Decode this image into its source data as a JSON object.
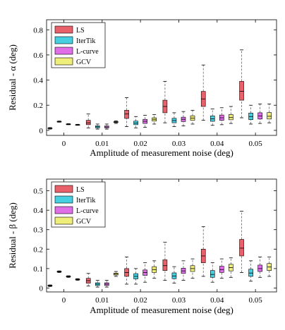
{
  "chart_data": [
    {
      "type": "box",
      "xlabel": "Amplitude of measurement noise (deg)",
      "ylabel": "Residual - α (deg)",
      "x_ticks": [
        0,
        0.01,
        0.02,
        0.03,
        0.04,
        0.05
      ],
      "x_tick_labels": [
        "0",
        "0.01",
        "0.02",
        "0.03",
        "0.04",
        "0.05"
      ],
      "xlim": [
        -0.0045,
        0.0555
      ],
      "ylim": [
        -0.04,
        0.88
      ],
      "y_ticks": [
        0,
        0.2,
        0.4,
        0.6,
        0.8
      ],
      "y_tick_labels": [
        "0",
        "0.2",
        "0.4",
        "0.6",
        "0.8"
      ],
      "legend_position": "top-left",
      "series": [
        {
          "name": "LS",
          "color": "#e8606a",
          "boxes": [
            {
              "x": 0,
              "min": 0.01,
              "q1": 0.015,
              "median": 0.017,
              "q3": 0.019,
              "max": 0.022
            },
            {
              "x": 0.01,
              "min": 0.02,
              "q1": 0.045,
              "median": 0.06,
              "q3": 0.08,
              "max": 0.13
            },
            {
              "x": 0.02,
              "min": 0.03,
              "q1": 0.095,
              "median": 0.13,
              "q3": 0.16,
              "max": 0.26
            },
            {
              "x": 0.03,
              "min": 0.06,
              "q1": 0.14,
              "median": 0.19,
              "q3": 0.24,
              "max": 0.39
            },
            {
              "x": 0.04,
              "min": 0.08,
              "q1": 0.19,
              "median": 0.25,
              "q3": 0.31,
              "max": 0.52
            },
            {
              "x": 0.05,
              "min": 0.1,
              "q1": 0.24,
              "median": 0.31,
              "q3": 0.39,
              "max": 0.64
            }
          ]
        },
        {
          "name": "IterTik",
          "color": "#46cfe0",
          "boxes": [
            {
              "x": 0,
              "min": 0.065,
              "q1": 0.068,
              "median": 0.07,
              "q3": 0.072,
              "max": 0.074
            },
            {
              "x": 0.01,
              "min": 0.01,
              "q1": 0.02,
              "median": 0.028,
              "q3": 0.036,
              "max": 0.05
            },
            {
              "x": 0.02,
              "min": 0.02,
              "q1": 0.045,
              "median": 0.058,
              "q3": 0.074,
              "max": 0.11
            },
            {
              "x": 0.03,
              "min": 0.03,
              "q1": 0.06,
              "median": 0.078,
              "q3": 0.096,
              "max": 0.14
            },
            {
              "x": 0.04,
              "min": 0.04,
              "q1": 0.072,
              "median": 0.092,
              "q3": 0.115,
              "max": 0.17
            },
            {
              "x": 0.05,
              "min": 0.05,
              "q1": 0.085,
              "median": 0.11,
              "q3": 0.138,
              "max": 0.2
            }
          ]
        },
        {
          "name": "L-curve",
          "color": "#e06ee8",
          "boxes": [
            {
              "x": 0,
              "min": 0.045,
              "q1": 0.047,
              "median": 0.049,
              "q3": 0.051,
              "max": 0.053
            },
            {
              "x": 0.01,
              "min": 0.01,
              "q1": 0.02,
              "median": 0.027,
              "q3": 0.035,
              "max": 0.05
            },
            {
              "x": 0.02,
              "min": 0.025,
              "q1": 0.055,
              "median": 0.072,
              "q3": 0.088,
              "max": 0.12
            },
            {
              "x": 0.03,
              "min": 0.035,
              "q1": 0.07,
              "median": 0.088,
              "q3": 0.105,
              "max": 0.15
            },
            {
              "x": 0.04,
              "min": 0.045,
              "q1": 0.08,
              "median": 0.1,
              "q3": 0.122,
              "max": 0.18
            },
            {
              "x": 0.05,
              "min": 0.055,
              "q1": 0.09,
              "median": 0.115,
              "q3": 0.14,
              "max": 0.21
            }
          ]
        },
        {
          "name": "GCV",
          "color": "#f0ee7a",
          "boxes": [
            {
              "x": 0,
              "min": 0.04,
              "q1": 0.042,
              "median": 0.044,
              "q3": 0.046,
              "max": 0.048
            },
            {
              "x": 0.01,
              "min": 0.055,
              "q1": 0.062,
              "median": 0.066,
              "q3": 0.07,
              "max": 0.076
            },
            {
              "x": 0.02,
              "min": 0.05,
              "q1": 0.074,
              "median": 0.088,
              "q3": 0.1,
              "max": 0.125
            },
            {
              "x": 0.03,
              "min": 0.05,
              "q1": 0.08,
              "median": 0.098,
              "q3": 0.116,
              "max": 0.16
            },
            {
              "x": 0.04,
              "min": 0.055,
              "q1": 0.084,
              "median": 0.102,
              "q3": 0.126,
              "max": 0.19
            },
            {
              "x": 0.05,
              "min": 0.06,
              "q1": 0.09,
              "median": 0.112,
              "q3": 0.142,
              "max": 0.21
            }
          ]
        }
      ]
    },
    {
      "type": "box",
      "xlabel": "Amplitude of measurement noise (deg)",
      "ylabel": "Residual - β (deg)",
      "x_ticks": [
        0,
        0.01,
        0.02,
        0.03,
        0.04,
        0.05
      ],
      "x_tick_labels": [
        "0",
        "0.01",
        "0.02",
        "0.03",
        "0.04",
        "0.05"
      ],
      "xlim": [
        -0.0045,
        0.0555
      ],
      "ylim": [
        -0.02,
        0.56
      ],
      "y_ticks": [
        0,
        0.1,
        0.2,
        0.3,
        0.4,
        0.5
      ],
      "y_tick_labels": [
        "0",
        "0.1",
        "0.2",
        "0.3",
        "0.4",
        "0.5"
      ],
      "legend_position": "top-left",
      "series": [
        {
          "name": "LS",
          "color": "#e8606a",
          "boxes": [
            {
              "x": 0,
              "min": 0.008,
              "q1": 0.01,
              "median": 0.012,
              "q3": 0.014,
              "max": 0.016
            },
            {
              "x": 0.01,
              "min": 0.01,
              "q1": 0.025,
              "median": 0.038,
              "q3": 0.05,
              "max": 0.075
            },
            {
              "x": 0.02,
              "min": 0.02,
              "q1": 0.06,
              "median": 0.08,
              "q3": 0.1,
              "max": 0.16
            },
            {
              "x": 0.03,
              "min": 0.04,
              "q1": 0.09,
              "median": 0.115,
              "q3": 0.145,
              "max": 0.235
            },
            {
              "x": 0.04,
              "min": 0.06,
              "q1": 0.13,
              "median": 0.165,
              "q3": 0.2,
              "max": 0.315
            },
            {
              "x": 0.05,
              "min": 0.08,
              "q1": 0.165,
              "median": 0.205,
              "q3": 0.25,
              "max": 0.395
            }
          ]
        },
        {
          "name": "IterTik",
          "color": "#46cfe0",
          "boxes": [
            {
              "x": 0,
              "min": 0.08,
              "q1": 0.082,
              "median": 0.084,
              "q3": 0.086,
              "max": 0.088
            },
            {
              "x": 0.01,
              "min": 0.005,
              "q1": 0.013,
              "median": 0.02,
              "q3": 0.027,
              "max": 0.04
            },
            {
              "x": 0.02,
              "min": 0.02,
              "q1": 0.047,
              "median": 0.06,
              "q3": 0.074,
              "max": 0.1
            },
            {
              "x": 0.03,
              "min": 0.025,
              "q1": 0.048,
              "median": 0.062,
              "q3": 0.078,
              "max": 0.11
            },
            {
              "x": 0.04,
              "min": 0.03,
              "q1": 0.055,
              "median": 0.07,
              "q3": 0.09,
              "max": 0.13
            },
            {
              "x": 0.05,
              "min": 0.035,
              "q1": 0.06,
              "median": 0.077,
              "q3": 0.097,
              "max": 0.14
            }
          ]
        },
        {
          "name": "L-curve",
          "color": "#e06ee8",
          "boxes": [
            {
              "x": 0,
              "min": 0.055,
              "q1": 0.057,
              "median": 0.059,
              "q3": 0.061,
              "max": 0.063
            },
            {
              "x": 0.01,
              "min": 0.005,
              "q1": 0.013,
              "median": 0.02,
              "q3": 0.027,
              "max": 0.04
            },
            {
              "x": 0.02,
              "min": 0.03,
              "q1": 0.065,
              "median": 0.08,
              "q3": 0.093,
              "max": 0.13
            },
            {
              "x": 0.03,
              "min": 0.04,
              "q1": 0.075,
              "median": 0.088,
              "q3": 0.102,
              "max": 0.14
            },
            {
              "x": 0.04,
              "min": 0.05,
              "q1": 0.08,
              "median": 0.095,
              "q3": 0.112,
              "max": 0.15
            },
            {
              "x": 0.05,
              "min": 0.055,
              "q1": 0.085,
              "median": 0.1,
              "q3": 0.118,
              "max": 0.16
            }
          ]
        },
        {
          "name": "GCV",
          "color": "#f0ee7a",
          "boxes": [
            {
              "x": 0,
              "min": 0.04,
              "q1": 0.042,
              "median": 0.044,
              "q3": 0.046,
              "max": 0.048
            },
            {
              "x": 0.01,
              "min": 0.06,
              "q1": 0.067,
              "median": 0.072,
              "q3": 0.077,
              "max": 0.085
            },
            {
              "x": 0.02,
              "min": 0.05,
              "q1": 0.08,
              "median": 0.095,
              "q3": 0.11,
              "max": 0.14
            },
            {
              "x": 0.03,
              "min": 0.05,
              "q1": 0.085,
              "median": 0.1,
              "q3": 0.115,
              "max": 0.15
            },
            {
              "x": 0.04,
              "min": 0.055,
              "q1": 0.088,
              "median": 0.105,
              "q3": 0.122,
              "max": 0.155
            },
            {
              "x": 0.05,
              "min": 0.06,
              "q1": 0.09,
              "median": 0.108,
              "q3": 0.126,
              "max": 0.16
            }
          ]
        }
      ]
    }
  ]
}
